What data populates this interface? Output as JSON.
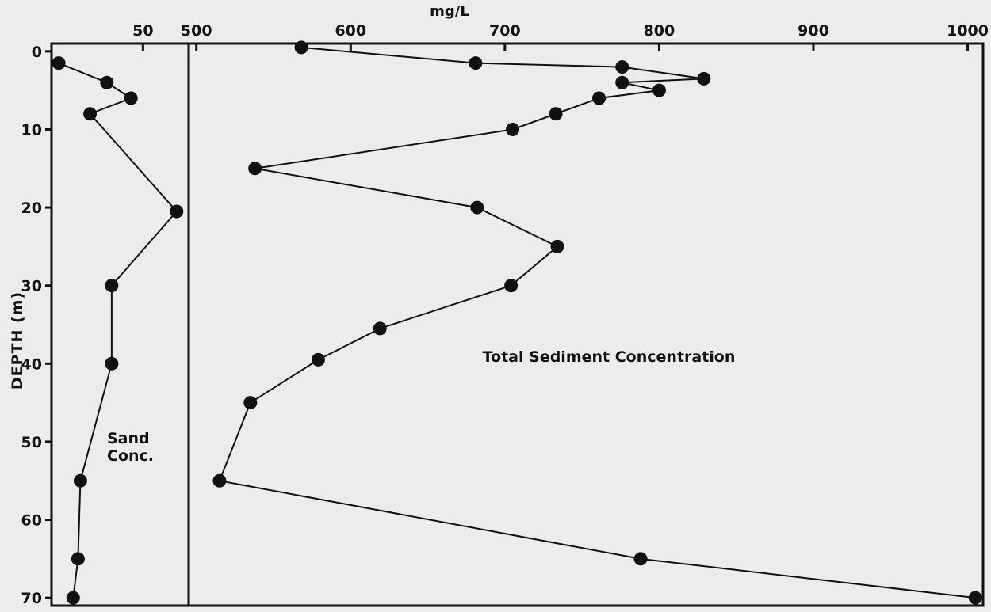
{
  "chart_data": {
    "type": "line",
    "y_axis": {
      "label": "DEPTH (m)",
      "ticks": [
        0,
        10,
        20,
        30,
        40,
        50,
        60,
        70
      ],
      "range": [
        -1,
        71
      ],
      "inverted": true
    },
    "x_unit_label": "mg/L",
    "panels": [
      {
        "name": "Sand Conc.",
        "annotation_lines": [
          "Sand",
          "Conc."
        ],
        "x_range": [
          12,
          69
        ],
        "x_ticks": [
          50
        ],
        "series": [
          {
            "name": "Sand Conc.",
            "points": [
              {
                "x": 15,
                "y": 1.5
              },
              {
                "x": 35,
                "y": 4
              },
              {
                "x": 45,
                "y": 6
              },
              {
                "x": 28,
                "y": 8
              },
              {
                "x": 64,
                "y": 20.5
              },
              {
                "x": 37,
                "y": 30
              },
              {
                "x": 37,
                "y": 40
              },
              {
                "x": 24,
                "y": 55
              },
              {
                "x": 23,
                "y": 65
              },
              {
                "x": 21,
                "y": 70
              }
            ]
          }
        ]
      },
      {
        "name": "Total Sediment Concentration",
        "annotation_lines": [
          "Total Sediment Concentration"
        ],
        "x_range": [
          495,
          1010
        ],
        "x_ticks": [
          500,
          600,
          700,
          800,
          900,
          1000
        ],
        "series": [
          {
            "name": "Total Sediment Concentration",
            "points": [
              {
                "x": 568,
                "y": -0.5
              },
              {
                "x": 681,
                "y": 1.5
              },
              {
                "x": 776,
                "y": 2
              },
              {
                "x": 829,
                "y": 3.5
              },
              {
                "x": 776,
                "y": 4
              },
              {
                "x": 800,
                "y": 5
              },
              {
                "x": 761,
                "y": 6
              },
              {
                "x": 733,
                "y": 8
              },
              {
                "x": 705,
                "y": 10
              },
              {
                "x": 538,
                "y": 15
              },
              {
                "x": 682,
                "y": 20
              },
              {
                "x": 734,
                "y": 25
              },
              {
                "x": 704,
                "y": 30
              },
              {
                "x": 619,
                "y": 35.5
              },
              {
                "x": 579,
                "y": 39.5
              },
              {
                "x": 535,
                "y": 45
              },
              {
                "x": 515,
                "y": 55
              },
              {
                "x": 788,
                "y": 65
              },
              {
                "x": 1005,
                "y": 70
              }
            ]
          }
        ]
      }
    ],
    "grid": false,
    "legend": "none"
  },
  "colors": {
    "background": "#ececec",
    "ink": "#111111"
  }
}
